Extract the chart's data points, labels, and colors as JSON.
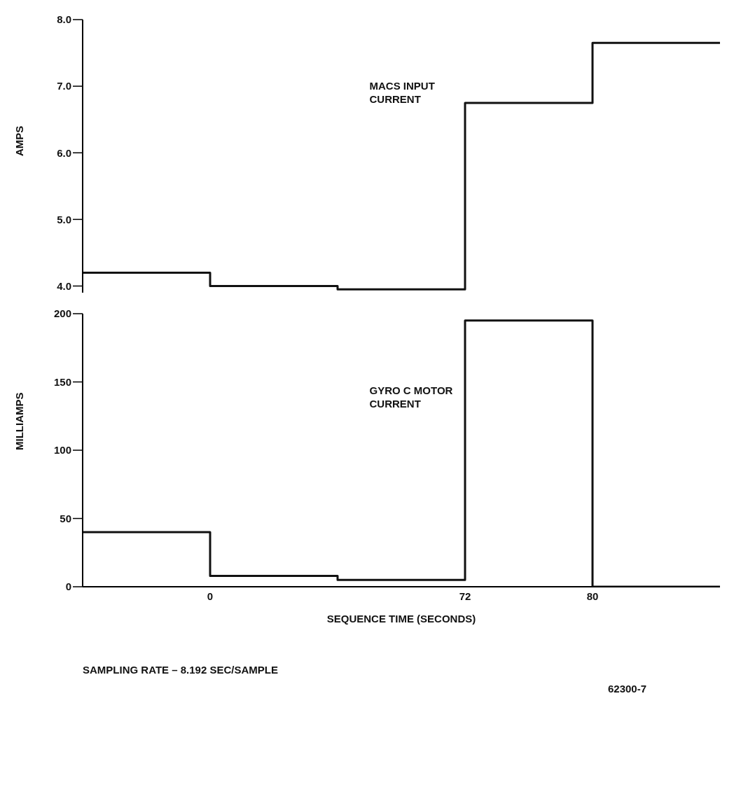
{
  "chart_data": [
    {
      "type": "step",
      "ylabel": "AMPS",
      "categories": [
        null,
        "0",
        null,
        "72",
        "80",
        null
      ],
      "series": [
        {
          "name": "MACS INPUT CURRENT",
          "color": "#111111",
          "values": [
            4.2,
            4.0,
            3.95,
            6.75,
            7.65,
            7.65
          ]
        }
      ],
      "ylim": [
        3.9,
        8
      ],
      "yticks": [
        {
          "value": 4,
          "label": "4.0"
        },
        {
          "value": 5,
          "label": "5.0"
        },
        {
          "value": 6,
          "label": "6.0"
        },
        {
          "value": 7,
          "label": "7.0"
        },
        {
          "value": 8,
          "label": "8.0"
        }
      ],
      "tick_labels": "y",
      "grid": false,
      "legend": false,
      "marker": "none",
      "line_style": "solid"
    },
    {
      "type": "step",
      "ylabel": "MILLIAMPS",
      "xlabel": "SEQUENCE TIME (SECONDS)",
      "categories": [
        null,
        "0",
        null,
        "72",
        "80",
        null
      ],
      "series": [
        {
          "name": "GYRO C MOTOR CURRENT",
          "color": "#111111",
          "values": [
            40,
            8,
            5,
            195,
            0,
            0
          ]
        }
      ],
      "ylim": [
        0,
        200
      ],
      "yticks": [
        0,
        50,
        100,
        150,
        200
      ],
      "grid": false,
      "legend": false,
      "marker": "none",
      "line_style": "solid",
      "annotations": [
        "SAMPLING RATE – 8.192 SEC/SAMPLE",
        "62300-7"
      ]
    }
  ]
}
